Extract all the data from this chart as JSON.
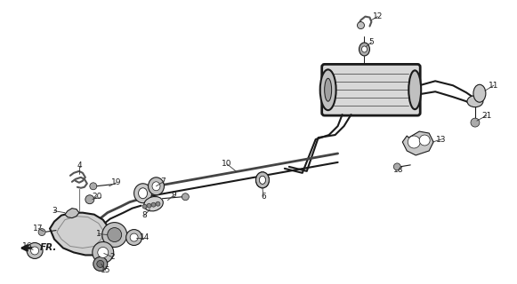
{
  "bg_color": "#ffffff",
  "line_color": "#1a1a1a",
  "fig_width": 5.81,
  "fig_height": 3.2,
  "dpi": 100
}
